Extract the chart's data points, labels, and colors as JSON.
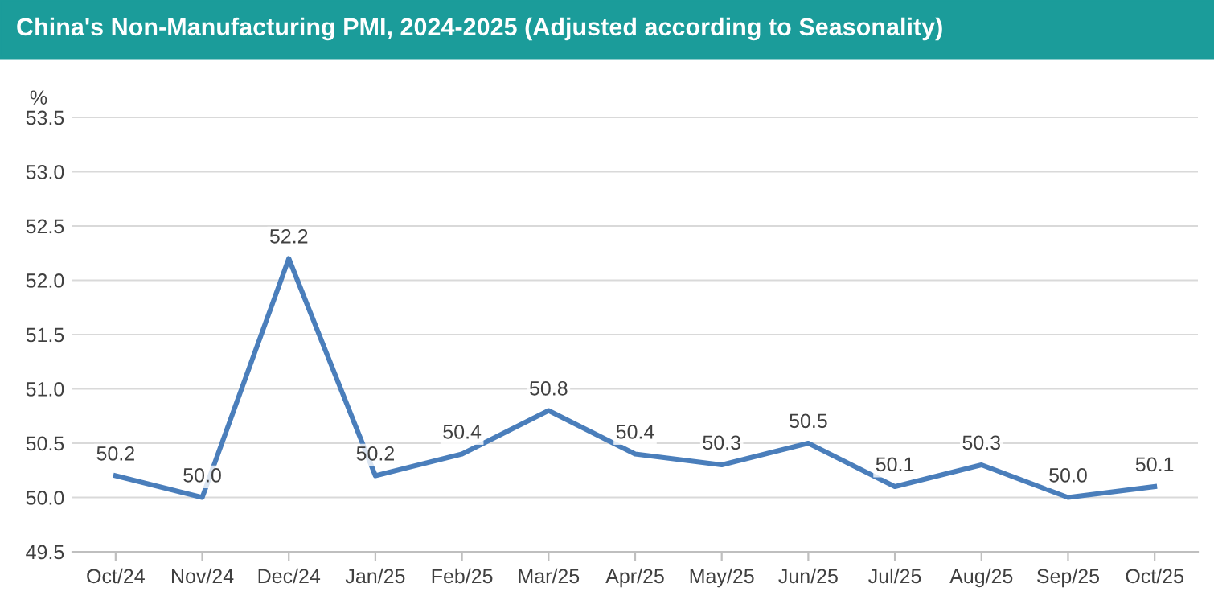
{
  "chart_data": {
    "type": "line",
    "title": "China's Non-Manufacturing PMI, 2024-2025 (Adjusted according to Seasonality)",
    "ylabel": "%",
    "categories": [
      "Oct/24",
      "Nov/24",
      "Dec/24",
      "Jan/25",
      "Feb/25",
      "Mar/25",
      "Apr/25",
      "May/25",
      "Jun/25",
      "Jul/25",
      "Aug/25",
      "Sep/25",
      "Oct/25"
    ],
    "series": [
      {
        "color": "#4a7ebb",
        "values": [
          50.2,
          50.0,
          52.2,
          50.2,
          50.4,
          50.8,
          50.4,
          50.3,
          50.5,
          50.1,
          50.3,
          50.0,
          50.1
        ]
      }
    ],
    "ylim": [
      49.5,
      53.5
    ],
    "yticks": [
      {
        "value": 49.5,
        "label": "49.5"
      },
      {
        "value": 50,
        "label": "50.0"
      },
      {
        "value": 50.5,
        "label": "50.5"
      },
      {
        "value": 51,
        "label": "51.0"
      },
      {
        "value": 51.5,
        "label": "51.5"
      },
      {
        "value": 52,
        "label": "52.0"
      },
      {
        "value": 52.5,
        "label": "52.5"
      },
      {
        "value": 53,
        "label": "53.0"
      },
      {
        "value": 53.5,
        "label": "53.5"
      }
    ],
    "value_labels": [
      "50.2",
      "50.0",
      "52.2",
      "50.2",
      "50.4",
      "50.8",
      "50.4",
      "50.3",
      "50.5",
      "50.1",
      "50.3",
      "50.0",
      "50.1"
    ],
    "grid": "y",
    "marker": "none",
    "line_style": "solid"
  }
}
